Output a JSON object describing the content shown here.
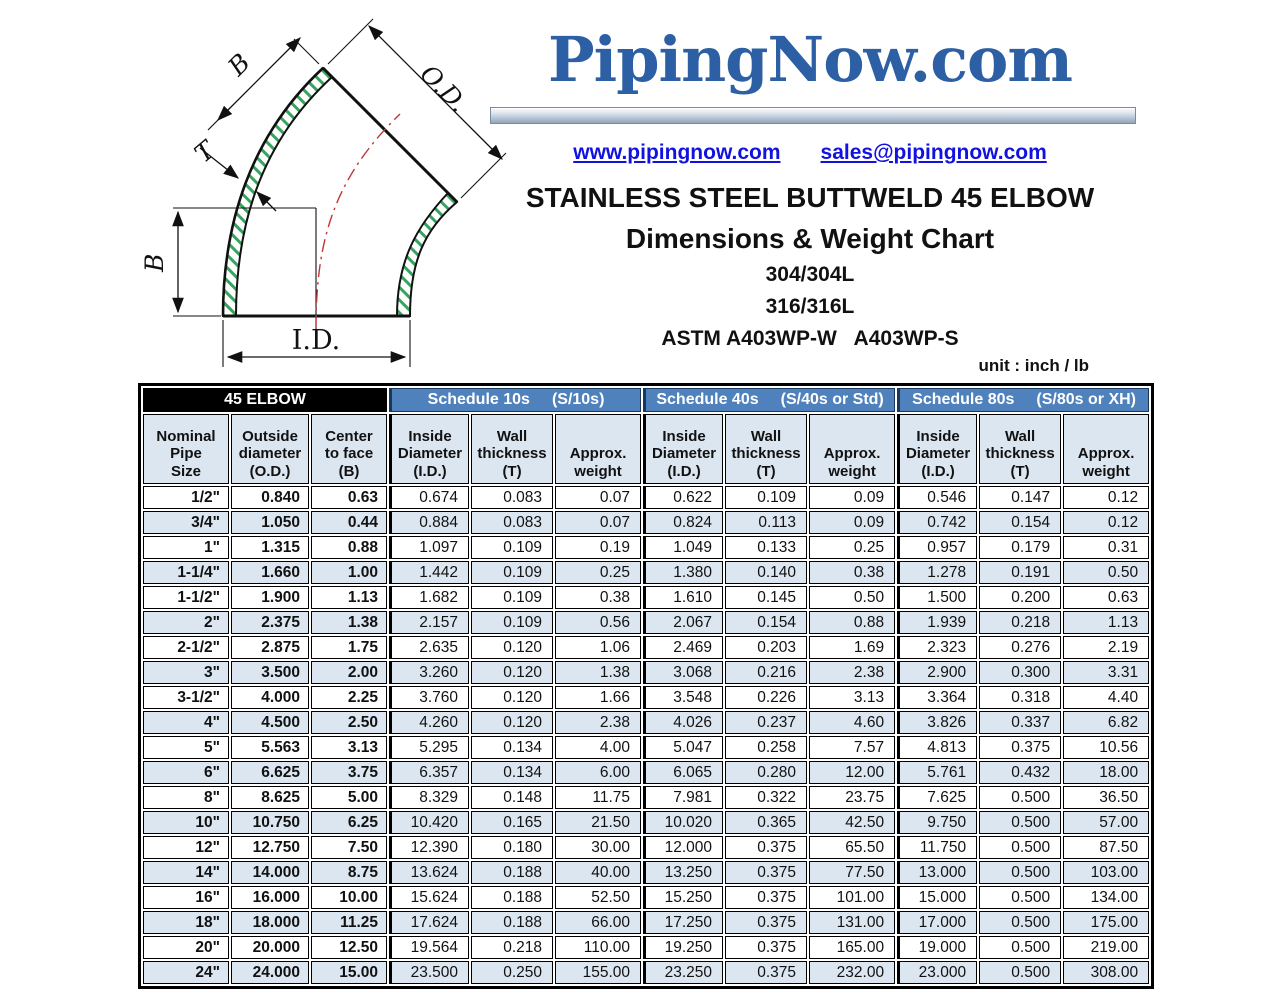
{
  "colors": {
    "accent_blue": "#4f81bd",
    "header_bg": "#dce6f1",
    "logo_blue": "#2c5fa3",
    "link_blue": "#1212e0",
    "hatch_green": "#35a45f",
    "centerline_red": "#c03636"
  },
  "brand": {
    "logo_text": "PipingNow.com",
    "website": "www.pipingnow.com",
    "email": "sales@pipingnow.com"
  },
  "titles": {
    "main": "STAINLESS STEEL BUTTWELD 45 ELBOW",
    "sub": "Dimensions & Weight Chart",
    "grade1": "304/304L",
    "grade2": "316/316L",
    "astm": "ASTM A403WP-W   A403WP-S",
    "unit_note": "unit : inch / lb"
  },
  "diagram": {
    "labels": {
      "b_top": "B",
      "od": "O.D.",
      "t": "T",
      "b_left": "B",
      "id": "I.D."
    }
  },
  "table": {
    "groups": [
      {
        "label": "45 ELBOW",
        "tag": ""
      },
      {
        "label": "Schedule 10s",
        "tag": "(S/10s)"
      },
      {
        "label": "Schedule 40s",
        "tag": "(S/40s or Std)"
      },
      {
        "label": "Schedule 80s",
        "tag": "(S/80s or XH)"
      }
    ],
    "column_headers": [
      "Nominal\nPipe\nSize",
      "Outside\ndiameter\n(O.D.)",
      "Center\nto face\n(B)",
      "Inside\nDiameter\n(I.D.)",
      "Wall\nthickness\n(T)",
      "Approx.\nweight",
      "Inside\nDiameter\n(I.D.)",
      "Wall\nthickness\n(T)",
      "Approx.\nweight",
      "Inside\nDiameter\n(I.D.)",
      "Wall\nthickness\n(T)",
      "Approx.\nweight"
    ],
    "rows": [
      [
        "1/2\"",
        "0.840",
        "0.63",
        "0.674",
        "0.083",
        "0.07",
        "0.622",
        "0.109",
        "0.09",
        "0.546",
        "0.147",
        "0.12"
      ],
      [
        "3/4\"",
        "1.050",
        "0.44",
        "0.884",
        "0.083",
        "0.07",
        "0.824",
        "0.113",
        "0.09",
        "0.742",
        "0.154",
        "0.12"
      ],
      [
        "1\"",
        "1.315",
        "0.88",
        "1.097",
        "0.109",
        "0.19",
        "1.049",
        "0.133",
        "0.25",
        "0.957",
        "0.179",
        "0.31"
      ],
      [
        "1-1/4\"",
        "1.660",
        "1.00",
        "1.442",
        "0.109",
        "0.25",
        "1.380",
        "0.140",
        "0.38",
        "1.278",
        "0.191",
        "0.50"
      ],
      [
        "1-1/2\"",
        "1.900",
        "1.13",
        "1.682",
        "0.109",
        "0.38",
        "1.610",
        "0.145",
        "0.50",
        "1.500",
        "0.200",
        "0.63"
      ],
      [
        "2\"",
        "2.375",
        "1.38",
        "2.157",
        "0.109",
        "0.56",
        "2.067",
        "0.154",
        "0.88",
        "1.939",
        "0.218",
        "1.13"
      ],
      [
        "2-1/2\"",
        "2.875",
        "1.75",
        "2.635",
        "0.120",
        "1.06",
        "2.469",
        "0.203",
        "1.69",
        "2.323",
        "0.276",
        "2.19"
      ],
      [
        "3\"",
        "3.500",
        "2.00",
        "3.260",
        "0.120",
        "1.38",
        "3.068",
        "0.216",
        "2.38",
        "2.900",
        "0.300",
        "3.31"
      ],
      [
        "3-1/2\"",
        "4.000",
        "2.25",
        "3.760",
        "0.120",
        "1.66",
        "3.548",
        "0.226",
        "3.13",
        "3.364",
        "0.318",
        "4.40"
      ],
      [
        "4\"",
        "4.500",
        "2.50",
        "4.260",
        "0.120",
        "2.38",
        "4.026",
        "0.237",
        "4.60",
        "3.826",
        "0.337",
        "6.82"
      ],
      [
        "5\"",
        "5.563",
        "3.13",
        "5.295",
        "0.134",
        "4.00",
        "5.047",
        "0.258",
        "7.57",
        "4.813",
        "0.375",
        "10.56"
      ],
      [
        "6\"",
        "6.625",
        "3.75",
        "6.357",
        "0.134",
        "6.00",
        "6.065",
        "0.280",
        "12.00",
        "5.761",
        "0.432",
        "18.00"
      ],
      [
        "8\"",
        "8.625",
        "5.00",
        "8.329",
        "0.148",
        "11.75",
        "7.981",
        "0.322",
        "23.75",
        "7.625",
        "0.500",
        "36.50"
      ],
      [
        "10\"",
        "10.750",
        "6.25",
        "10.420",
        "0.165",
        "21.50",
        "10.020",
        "0.365",
        "42.50",
        "9.750",
        "0.500",
        "57.00"
      ],
      [
        "12\"",
        "12.750",
        "7.50",
        "12.390",
        "0.180",
        "30.00",
        "12.000",
        "0.375",
        "65.50",
        "11.750",
        "0.500",
        "87.50"
      ],
      [
        "14\"",
        "14.000",
        "8.75",
        "13.624",
        "0.188",
        "40.00",
        "13.250",
        "0.375",
        "77.50",
        "13.000",
        "0.500",
        "103.00"
      ],
      [
        "16\"",
        "16.000",
        "10.00",
        "15.624",
        "0.188",
        "52.50",
        "15.250",
        "0.375",
        "101.00",
        "15.000",
        "0.500",
        "134.00"
      ],
      [
        "18\"",
        "18.000",
        "11.25",
        "17.624",
        "0.188",
        "66.00",
        "17.250",
        "0.375",
        "131.00",
        "17.000",
        "0.500",
        "175.00"
      ],
      [
        "20\"",
        "20.000",
        "12.50",
        "19.564",
        "0.218",
        "110.00",
        "19.250",
        "0.375",
        "165.00",
        "19.000",
        "0.500",
        "219.00"
      ],
      [
        "24\"",
        "24.000",
        "15.00",
        "23.500",
        "0.250",
        "155.00",
        "23.250",
        "0.375",
        "232.00",
        "23.000",
        "0.500",
        "308.00"
      ]
    ]
  }
}
